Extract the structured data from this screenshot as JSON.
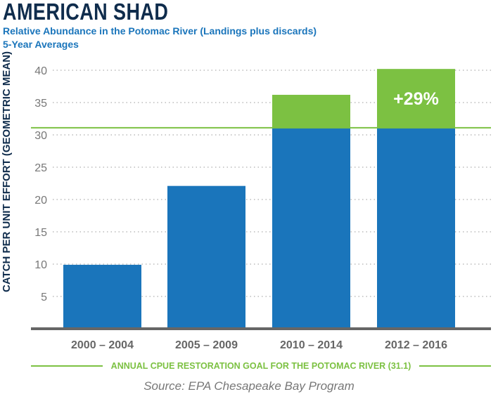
{
  "header": {
    "title": "AMERICAN SHAD",
    "subtitle": "Relative Abundance in the Potomac River (Landings plus discards)",
    "subtitle2": "5-Year Averages"
  },
  "chart_data": {
    "type": "bar",
    "title": "AMERICAN SHAD",
    "ylabel": "CATCH PER UNIT EFFORT (GEOMETRIC MEAN)",
    "xlabel": "",
    "categories": [
      "2000 – 2004",
      "2005 – 2009",
      "2010 – 2014",
      "2012 – 2016"
    ],
    "values": [
      9.9,
      22.1,
      36.2,
      40.2
    ],
    "ylim": [
      0,
      40
    ],
    "yticks": [
      5,
      10,
      15,
      20,
      25,
      30,
      35,
      40
    ],
    "grid": true,
    "goal": {
      "value": 31.1,
      "label": "ANNUAL CPUE RESTORATION GOAL FOR THE POTOMAC RIVER (31.1)"
    },
    "annotation": {
      "category": "2012 – 2016",
      "text": "+29%"
    },
    "colors": {
      "bar": "#1a75bb",
      "above_goal": "#7cc142",
      "goal_line": "#7cc142",
      "axis": "#666666"
    }
  },
  "footer": {
    "source": "Source: EPA Chesapeake Bay Program"
  }
}
